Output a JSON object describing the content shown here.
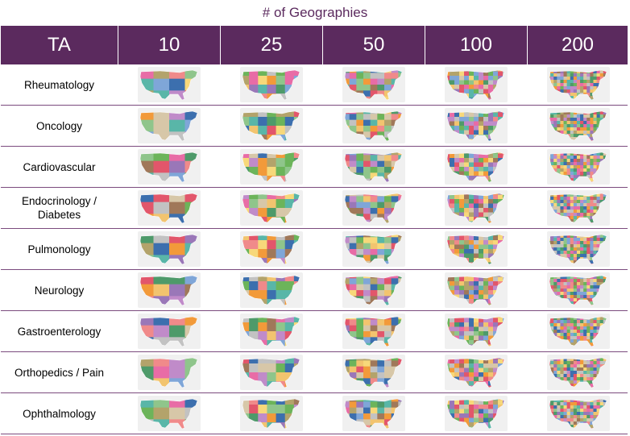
{
  "title": "# of Geographies",
  "header": {
    "ta_label": "TA",
    "columns": [
      "10",
      "25",
      "50",
      "100",
      "200"
    ]
  },
  "rows": [
    {
      "label": "Rheumatology"
    },
    {
      "label": "Oncology"
    },
    {
      "label": "Cardiovascular"
    },
    {
      "label": "Endocrinology /\nDiabetes"
    },
    {
      "label": "Pulmonology"
    },
    {
      "label": "Neurology"
    },
    {
      "label": "Gastroenterology"
    },
    {
      "label": "Orthopedics / Pain"
    },
    {
      "label": "Ophthalmology"
    }
  ],
  "colors": {
    "header_bg": "#5b2a5e",
    "row_divider": "#7b4b7e",
    "map_palette": [
      "#a0785a",
      "#3c6fae",
      "#f08a8a",
      "#f2c46f",
      "#8fc58b",
      "#c08bc9",
      "#f29a3a",
      "#59b6a8",
      "#e86ca6",
      "#7fa6d8",
      "#b3a36b",
      "#d7c7a8",
      "#9a77b8",
      "#6cb45a",
      "#e2566b",
      "#f7d87a",
      "#c2c2c2",
      "#4e9a6a"
    ]
  }
}
